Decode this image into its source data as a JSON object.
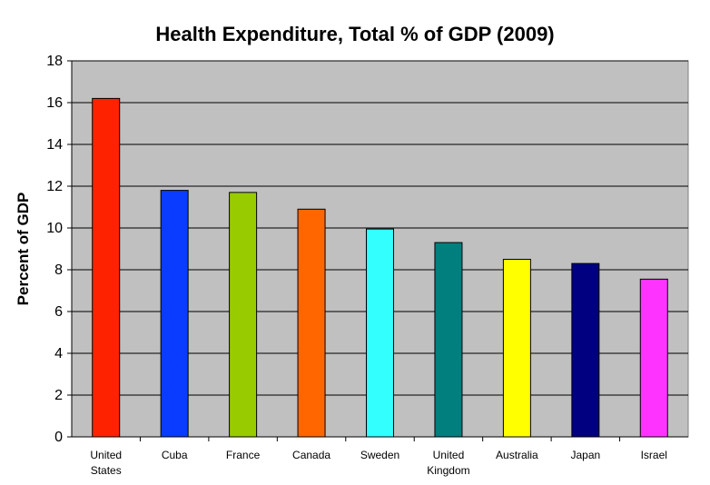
{
  "chart_data": {
    "type": "bar",
    "title": "Health Expenditure, Total % of GDP (2009)",
    "xlabel": "",
    "ylabel": "Percent of GDP",
    "ylim": [
      0,
      18
    ],
    "yticks": [
      0,
      2,
      4,
      6,
      8,
      10,
      12,
      14,
      16,
      18
    ],
    "grid": true,
    "legend": "none",
    "plot_background": "#c0c0c0",
    "categories": [
      [
        "United",
        "States"
      ],
      [
        "Cuba"
      ],
      [
        "France"
      ],
      [
        "Canada"
      ],
      [
        "Sweden"
      ],
      [
        "United",
        "Kingdom"
      ],
      [
        "Australia"
      ],
      [
        "Japan"
      ],
      [
        "Israel"
      ]
    ],
    "values": [
      16.2,
      11.8,
      11.7,
      10.9,
      9.95,
      9.3,
      8.5,
      8.3,
      7.55
    ],
    "colors": [
      "#ff2200",
      "#0a3cff",
      "#99cc00",
      "#ff6600",
      "#33ffff",
      "#007f7f",
      "#ffff00",
      "#000080",
      "#ff33ff"
    ]
  }
}
